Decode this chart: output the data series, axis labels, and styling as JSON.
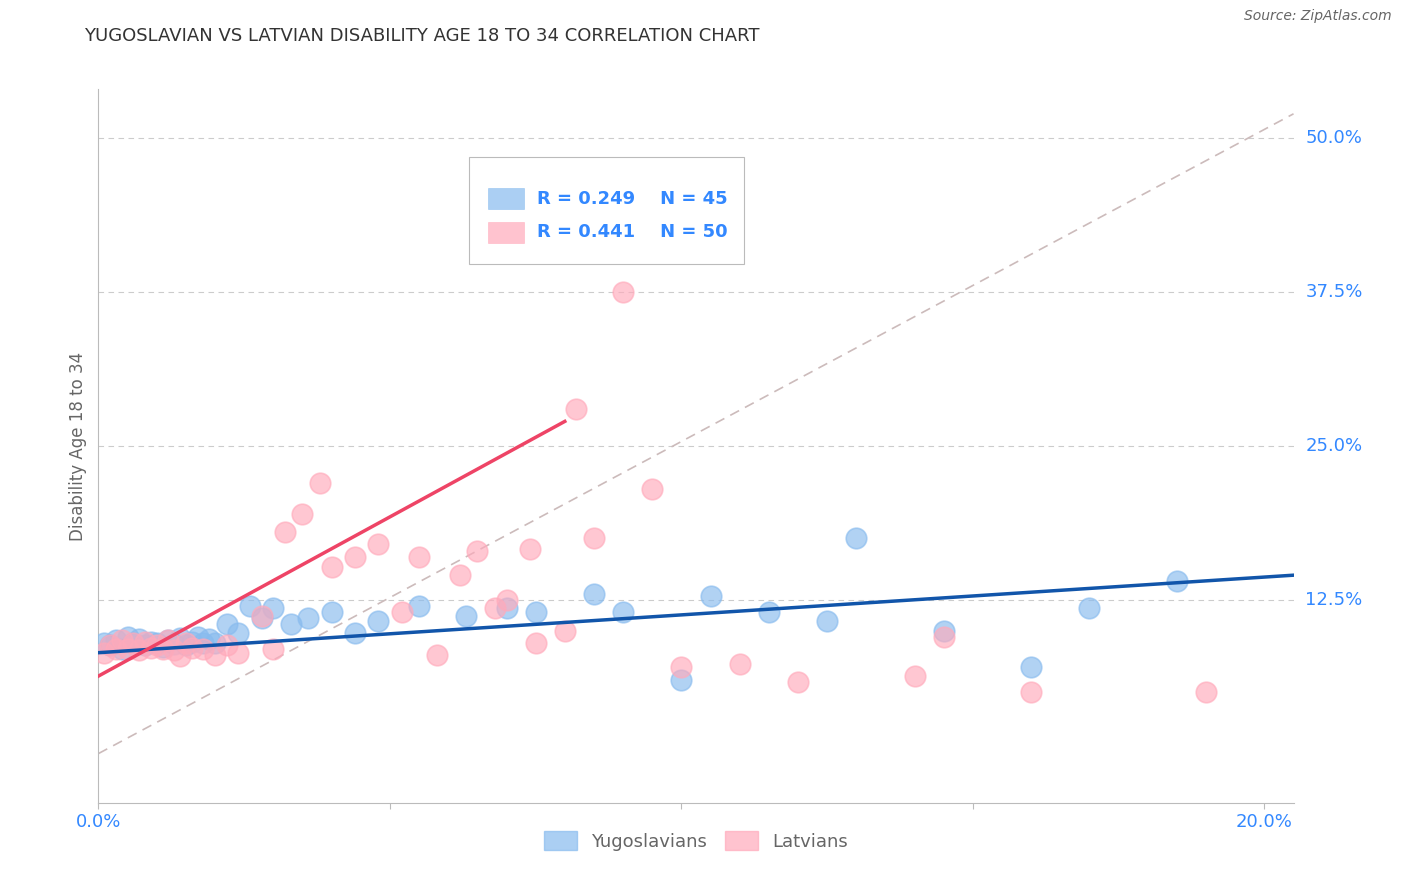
{
  "title": "YUGOSLAVIAN VS LATVIAN DISABILITY AGE 18 TO 34 CORRELATION CHART",
  "source": "Source: ZipAtlas.com",
  "ylabel": "Disability Age 18 to 34",
  "ytick_labels": [
    "12.5%",
    "25.0%",
    "37.5%",
    "50.0%"
  ],
  "ytick_values": [
    0.125,
    0.25,
    0.375,
    0.5
  ],
  "xlim": [
    0.0,
    0.205
  ],
  "ylim": [
    -0.04,
    0.54
  ],
  "blue_R": "0.249",
  "blue_N": "45",
  "pink_R": "0.441",
  "pink_N": "50",
  "blue_color": "#88BBEE",
  "pink_color": "#FFAABB",
  "blue_edge_color": "#88BBEE",
  "pink_edge_color": "#FFAABB",
  "blue_trend_color": "#1155AA",
  "pink_trend_color": "#EE4466",
  "ref_line_color": "#CCBBBB",
  "grid_color": "#CCCCCC",
  "title_color": "#333333",
  "source_color": "#666666",
  "axis_label_color": "#666666",
  "tick_color": "#3388FF",
  "legend_color": "#3388FF",
  "blue_x": [
    0.001,
    0.002,
    0.003,
    0.004,
    0.005,
    0.006,
    0.007,
    0.008,
    0.009,
    0.01,
    0.011,
    0.012,
    0.013,
    0.014,
    0.015,
    0.016,
    0.017,
    0.018,
    0.019,
    0.02,
    0.022,
    0.024,
    0.026,
    0.028,
    0.03,
    0.033,
    0.036,
    0.04,
    0.044,
    0.048,
    0.055,
    0.063,
    0.07,
    0.075,
    0.085,
    0.09,
    0.1,
    0.105,
    0.115,
    0.125,
    0.13,
    0.145,
    0.16,
    0.17,
    0.185
  ],
  "blue_y": [
    0.09,
    0.088,
    0.092,
    0.085,
    0.095,
    0.09,
    0.093,
    0.088,
    0.091,
    0.09,
    0.087,
    0.092,
    0.089,
    0.094,
    0.088,
    0.091,
    0.095,
    0.09,
    0.093,
    0.09,
    0.105,
    0.098,
    0.12,
    0.11,
    0.118,
    0.105,
    0.11,
    0.115,
    0.098,
    0.108,
    0.12,
    0.112,
    0.118,
    0.115,
    0.13,
    0.115,
    0.06,
    0.128,
    0.115,
    0.108,
    0.175,
    0.1,
    0.07,
    0.118,
    0.14
  ],
  "pink_x": [
    0.001,
    0.002,
    0.003,
    0.004,
    0.005,
    0.006,
    0.007,
    0.008,
    0.009,
    0.01,
    0.011,
    0.012,
    0.013,
    0.014,
    0.015,
    0.016,
    0.018,
    0.02,
    0.022,
    0.024,
    0.028,
    0.03,
    0.032,
    0.035,
    0.038,
    0.04,
    0.044,
    0.048,
    0.052,
    0.055,
    0.058,
    0.062,
    0.065,
    0.068,
    0.07,
    0.074,
    0.075,
    0.08,
    0.082,
    0.085,
    0.088,
    0.09,
    0.095,
    0.1,
    0.11,
    0.12,
    0.14,
    0.145,
    0.16,
    0.19
  ],
  "pink_y": [
    0.082,
    0.088,
    0.085,
    0.092,
    0.085,
    0.09,
    0.084,
    0.091,
    0.086,
    0.088,
    0.085,
    0.092,
    0.084,
    0.079,
    0.09,
    0.086,
    0.085,
    0.08,
    0.088,
    0.082,
    0.112,
    0.085,
    0.18,
    0.195,
    0.22,
    0.152,
    0.16,
    0.17,
    0.115,
    0.16,
    0.08,
    0.145,
    0.165,
    0.118,
    0.125,
    0.166,
    0.09,
    0.1,
    0.28,
    0.175,
    0.46,
    0.375,
    0.215,
    0.07,
    0.073,
    0.058,
    0.063,
    0.095,
    0.05,
    0.05
  ],
  "blue_trend_x": [
    0.0,
    0.205
  ],
  "blue_trend_y": [
    0.082,
    0.145
  ],
  "pink_trend_x": [
    0.0,
    0.08
  ],
  "pink_trend_y": [
    0.063,
    0.27
  ]
}
